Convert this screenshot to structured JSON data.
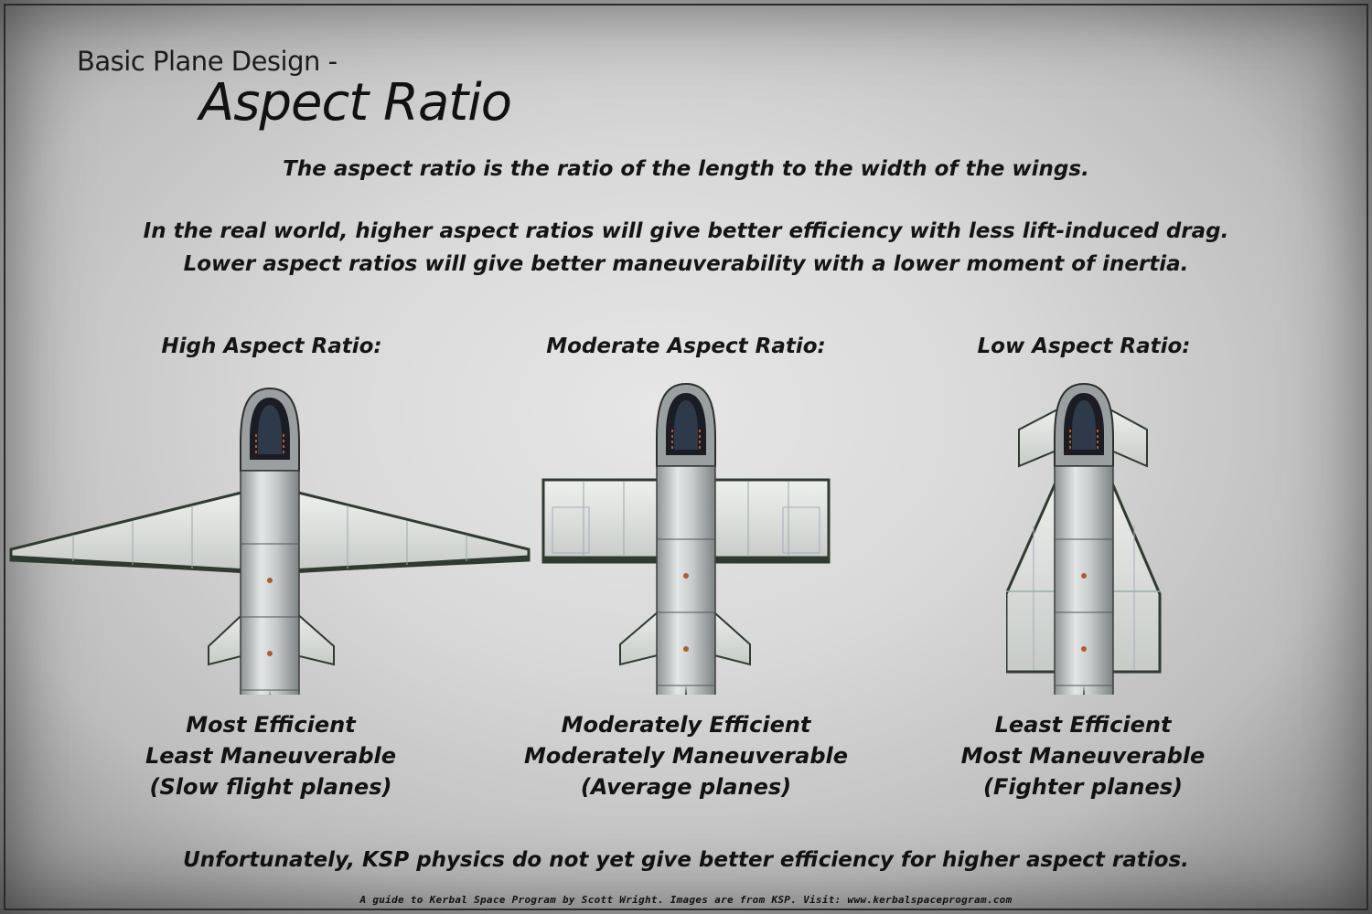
{
  "title": {
    "subtitle": "Basic Plane Design -",
    "main": "Aspect Ratio"
  },
  "intro": {
    "line1": "The aspect ratio is the ratio of the length to the width of the wings.",
    "line2": "In the real world, higher aspect ratios will give better efficiency with less lift-induced drag.",
    "line3": "Lower aspect ratios will give better maneuverability with a lower moment of inertia."
  },
  "columns": [
    {
      "heading": "High Aspect Ratio:",
      "desc": [
        "Most Efficient",
        "Least Maneuverable",
        "(Slow flight planes)"
      ]
    },
    {
      "heading": "Moderate Aspect Ratio:",
      "desc": [
        "Moderately Efficient",
        "Moderately Maneuverable",
        "(Average planes)"
      ]
    },
    {
      "heading": "Low Aspect Ratio:",
      "desc": [
        "Least Efficient",
        "Most Maneuverable",
        "(Fighter planes)"
      ]
    }
  ],
  "footer": {
    "note": "Unfortunately, KSP physics do not yet give better efficiency for higher aspect ratios.",
    "credit": "A guide to Kerbal Space Program by Scott Wright.  Images are from KSP.  Visit:  www.kerbalspaceprogram.com"
  },
  "colors": {
    "fuselage": "#c9cccc",
    "wing": "#dfe2e0",
    "edge": "#2f3a30",
    "cockpit": "#1a1d24"
  }
}
